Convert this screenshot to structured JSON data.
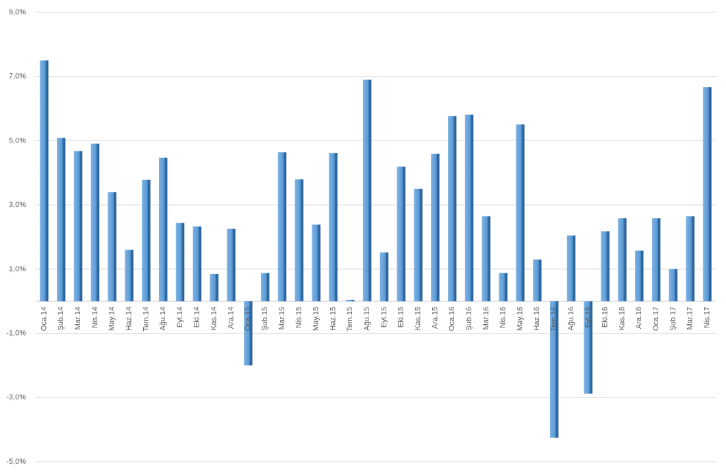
{
  "chart_data": {
    "type": "bar",
    "categories": [
      "Oca.14",
      "Şub.14",
      "Mar.14",
      "Nis.14",
      "May.14",
      "Haz.14",
      "Tem.14",
      "Ağu.14",
      "Eyl.14",
      "Eki.14",
      "Kas.14",
      "Ara.14",
      "Oca.15",
      "Şub.15",
      "Mar.15",
      "Nis.15",
      "May.15",
      "Haz.15",
      "Tem.15",
      "Ağu.15",
      "Eyl.15",
      "Eki.15",
      "Kas.15",
      "Ara.15",
      "Oca.16",
      "Şub.16",
      "Mar.16",
      "Nis.16",
      "May.16",
      "Haz.16",
      "Tem.16",
      "Ağu.16",
      "Eyl.16",
      "Eki.16",
      "Kas.16",
      "Ara.16",
      "Oca.17",
      "Şub.17",
      "Mar.17",
      "Nis.17"
    ],
    "values": [
      7.5,
      5.09,
      4.68,
      4.91,
      3.4,
      1.6,
      3.78,
      4.47,
      2.44,
      2.33,
      0.85,
      2.26,
      -2.0,
      0.88,
      4.64,
      3.8,
      2.39,
      4.62,
      0.04,
      6.9,
      1.52,
      4.19,
      3.5,
      4.59,
      5.77,
      5.81,
      2.65,
      0.88,
      5.51,
      1.3,
      -4.25,
      2.05,
      -2.88,
      2.18,
      2.59,
      1.58,
      2.59,
      1.0,
      2.65,
      6.67
    ],
    "color": "#5b9bd5",
    "ylim": [
      -5,
      9
    ],
    "yticks": [
      {
        "value": -5,
        "label": "-5,0%"
      },
      {
        "value": -3,
        "label": "-3,0%"
      },
      {
        "value": -1,
        "label": "-1,0%"
      },
      {
        "value": 1,
        "label": "1,0%"
      },
      {
        "value": 3,
        "label": "3,0%"
      },
      {
        "value": 5,
        "label": "5,0%"
      },
      {
        "value": 7,
        "label": "7,0%"
      },
      {
        "value": 9,
        "label": "9,0%"
      }
    ],
    "grid": true
  }
}
